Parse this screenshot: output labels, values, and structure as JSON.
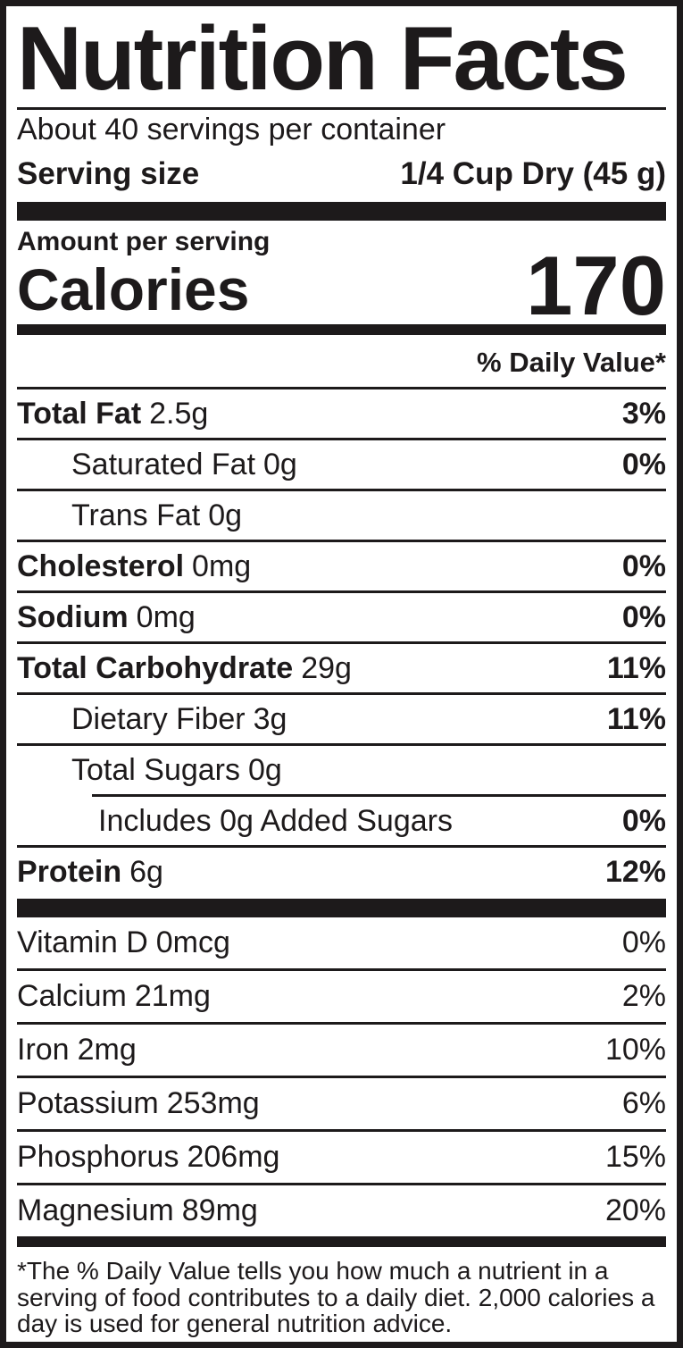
{
  "title": "Nutrition Facts",
  "servings_per_container": "About 40 servings per container",
  "serving_size": {
    "label": "Serving size",
    "value": "1/4 Cup Dry (45 g)"
  },
  "calories": {
    "amount_per_serving_label": "Amount per serving",
    "label": "Calories",
    "value": "170"
  },
  "daily_value_header": "% Daily Value*",
  "nutrients": [
    {
      "name": "Total Fat",
      "amount": "2.5g",
      "dv": "3%"
    },
    {
      "name": "Saturated Fat",
      "amount": "0g",
      "dv": "0%"
    },
    {
      "name": "Trans Fat",
      "amount": "0g",
      "dv": ""
    },
    {
      "name": "Cholesterol",
      "amount": "0mg",
      "dv": "0%"
    },
    {
      "name": "Sodium",
      "amount": "0mg",
      "dv": "0%"
    },
    {
      "name": "Total Carbohydrate",
      "amount": "29g",
      "dv": "11%"
    },
    {
      "name": "Dietary Fiber",
      "amount": "3g",
      "dv": "11%"
    },
    {
      "name": "Total Sugars",
      "amount": "0g",
      "dv": ""
    },
    {
      "name": "Includes 0g Added Sugars",
      "amount": "",
      "dv": "0%"
    },
    {
      "name": "Protein",
      "amount": "6g",
      "dv": "12%"
    }
  ],
  "micronutrients": [
    {
      "name": "Vitamin D",
      "amount": "0mcg",
      "dv": "0%"
    },
    {
      "name": "Calcium",
      "amount": "21mg",
      "dv": "2%"
    },
    {
      "name": "Iron",
      "amount": "2mg",
      "dv": "10%"
    },
    {
      "name": "Potassium",
      "amount": "253mg",
      "dv": "6%"
    },
    {
      "name": "Phosphorus",
      "amount": "206mg",
      "dv": "15%"
    },
    {
      "name": "Magnesium",
      "amount": "89mg",
      "dv": "20%"
    }
  ],
  "footnote": "*The % Daily Value tells you how much a nutrient in a serving of food contributes to a daily diet. 2,000 calories a day is used for general nutrition advice.",
  "colors": {
    "ink": "#1d1a1b",
    "background": "#ffffff"
  }
}
